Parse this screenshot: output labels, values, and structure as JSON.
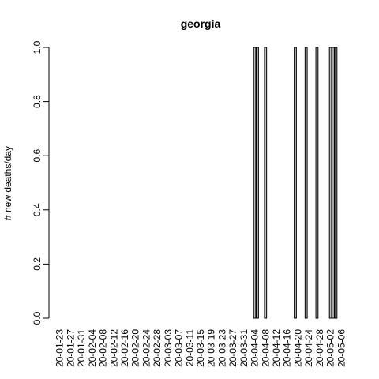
{
  "chart_data": {
    "type": "bar",
    "title": "georgia",
    "xlabel": "",
    "ylabel": "# new deaths/day",
    "ylim": [
      0,
      1
    ],
    "yticks": [
      "0.0",
      "0.2",
      "0.4",
      "0.6",
      "0.8",
      "1.0"
    ],
    "xtick_labels": [
      "20-01-23",
      "20-01-27",
      "20-01-31",
      "20-02-04",
      "20-02-08",
      "20-02-12",
      "20-02-16",
      "20-02-20",
      "20-02-24",
      "20-02-28",
      "20-03-03",
      "20-03-07",
      "20-03-11",
      "20-03-15",
      "20-03-19",
      "20-03-23",
      "20-03-27",
      "20-03-31",
      "20-04-04",
      "20-04-08",
      "20-04-12",
      "20-04-16",
      "20-04-20",
      "20-04-24",
      "20-04-28",
      "20-05-02",
      "20-05-06"
    ],
    "categories": [
      "20-01-23",
      "20-01-24",
      "20-01-25",
      "20-01-26",
      "20-01-27",
      "20-01-28",
      "20-01-29",
      "20-01-30",
      "20-01-31",
      "20-02-01",
      "20-02-02",
      "20-02-03",
      "20-02-04",
      "20-02-05",
      "20-02-06",
      "20-02-07",
      "20-02-08",
      "20-02-09",
      "20-02-10",
      "20-02-11",
      "20-02-12",
      "20-02-13",
      "20-02-14",
      "20-02-15",
      "20-02-16",
      "20-02-17",
      "20-02-18",
      "20-02-19",
      "20-02-20",
      "20-02-21",
      "20-02-22",
      "20-02-23",
      "20-02-24",
      "20-02-25",
      "20-02-26",
      "20-02-27",
      "20-02-28",
      "20-02-29",
      "20-03-01",
      "20-03-02",
      "20-03-03",
      "20-03-04",
      "20-03-05",
      "20-03-06",
      "20-03-07",
      "20-03-08",
      "20-03-09",
      "20-03-10",
      "20-03-11",
      "20-03-12",
      "20-03-13",
      "20-03-14",
      "20-03-15",
      "20-03-16",
      "20-03-17",
      "20-03-18",
      "20-03-19",
      "20-03-20",
      "20-03-21",
      "20-03-22",
      "20-03-23",
      "20-03-24",
      "20-03-25",
      "20-03-26",
      "20-03-27",
      "20-03-28",
      "20-03-29",
      "20-03-30",
      "20-03-31",
      "20-04-01",
      "20-04-02",
      "20-04-03",
      "20-04-04",
      "20-04-05",
      "20-04-06",
      "20-04-07",
      "20-04-08",
      "20-04-09",
      "20-04-10",
      "20-04-11",
      "20-04-12",
      "20-04-13",
      "20-04-14",
      "20-04-15",
      "20-04-16",
      "20-04-17",
      "20-04-18",
      "20-04-19",
      "20-04-20",
      "20-04-21",
      "20-04-22",
      "20-04-23",
      "20-04-24",
      "20-04-25",
      "20-04-26",
      "20-04-27",
      "20-04-28",
      "20-04-29",
      "20-04-30",
      "20-05-01",
      "20-05-02",
      "20-05-03",
      "20-05-04",
      "20-05-05",
      "20-05-06"
    ],
    "values": [
      0,
      0,
      0,
      0,
      0,
      0,
      0,
      0,
      0,
      0,
      0,
      0,
      0,
      0,
      0,
      0,
      0,
      0,
      0,
      0,
      0,
      0,
      0,
      0,
      0,
      0,
      0,
      0,
      0,
      0,
      0,
      0,
      0,
      0,
      0,
      0,
      0,
      0,
      0,
      0,
      0,
      0,
      0,
      0,
      0,
      0,
      0,
      0,
      0,
      0,
      0,
      0,
      0,
      0,
      0,
      0,
      0,
      0,
      0,
      0,
      0,
      0,
      0,
      0,
      0,
      0,
      0,
      0,
      0,
      0,
      0,
      0,
      1,
      1,
      0,
      0,
      1,
      0,
      0,
      0,
      0,
      0,
      0,
      0,
      0,
      0,
      0,
      1,
      0,
      0,
      0,
      1,
      0,
      0,
      0,
      1,
      0,
      0,
      0,
      0,
      1,
      1,
      1,
      0,
      0
    ],
    "grid": false,
    "legend": "none"
  }
}
